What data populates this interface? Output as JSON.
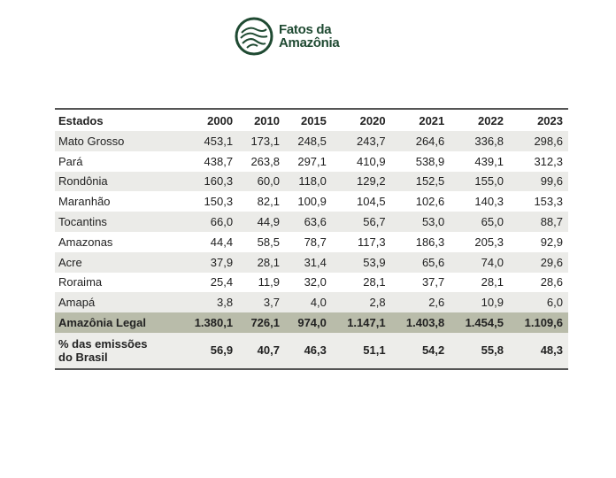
{
  "logo": {
    "line1": "Fatos da",
    "line2": "Amazônia",
    "color": "#1f4a32"
  },
  "table": {
    "headers": [
      "Estados",
      "2000",
      "2010",
      "2015",
      "2020",
      "2021",
      "2022",
      "2023"
    ],
    "rows": [
      [
        "Mato Grosso",
        "453,1",
        "173,1",
        "248,5",
        "243,7",
        "264,6",
        "336,8",
        "298,6"
      ],
      [
        "Pará",
        "438,7",
        "263,8",
        "297,1",
        "410,9",
        "538,9",
        "439,1",
        "312,3"
      ],
      [
        "Rondônia",
        "160,3",
        "60,0",
        "118,0",
        "129,2",
        "152,5",
        "155,0",
        "99,6"
      ],
      [
        "Maranhão",
        "150,3",
        "82,1",
        "100,9",
        "104,5",
        "102,6",
        "140,3",
        "153,3"
      ],
      [
        "Tocantins",
        "66,0",
        "44,9",
        "63,6",
        "56,7",
        "53,0",
        "65,0",
        "88,7"
      ],
      [
        "Amazonas",
        "44,4",
        "58,5",
        "78,7",
        "117,3",
        "186,3",
        "205,3",
        "92,9"
      ],
      [
        "Acre",
        "37,9",
        "28,1",
        "31,4",
        "53,9",
        "65,6",
        "74,0",
        "29,6"
      ],
      [
        "Roraima",
        "25,4",
        "11,9",
        "32,0",
        "28,1",
        "37,7",
        "28,1",
        "28,6"
      ],
      [
        "Amapá",
        "3,8",
        "3,7",
        "4,0",
        "2,8",
        "2,6",
        "10,9",
        "6,0"
      ]
    ],
    "total": [
      "Amazônia Legal",
      "1.380,1",
      "726,1",
      "974,0",
      "1.147,1",
      "1.403,8",
      "1.454,5",
      "1.109,6"
    ],
    "pct": {
      "label1": "% das emissões",
      "label2": "do Brasil",
      "values": [
        "56,9",
        "40,7",
        "46,3",
        "51,1",
        "54,2",
        "55,8",
        "48,3"
      ]
    }
  }
}
